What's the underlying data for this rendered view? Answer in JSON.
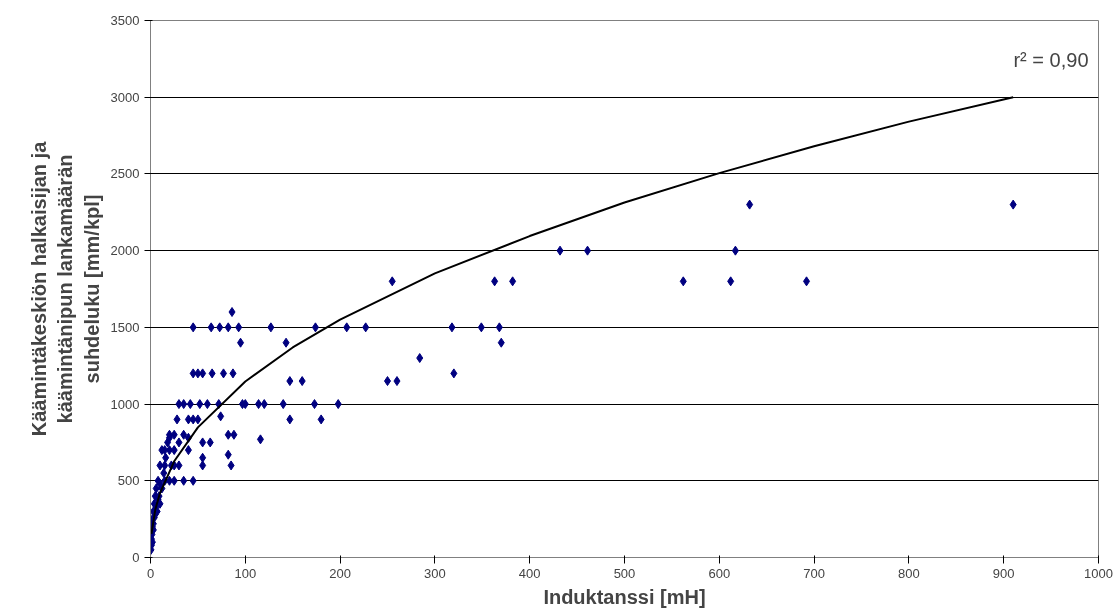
{
  "chart_data": {
    "type": "scatter",
    "xlabel": "Induktanssi [mH]",
    "ylabel": "Käämintäkeskiön halkaisijan ja käämintänipun lankamäärän suhdeluku [mm/kpl]",
    "xlim": [
      0,
      1000
    ],
    "xticks": [
      0,
      100,
      200,
      300,
      400,
      500,
      600,
      700,
      800,
      900,
      1000
    ],
    "ylim": [
      0,
      3500
    ],
    "yticks": [
      0,
      500,
      1000,
      1500,
      2000,
      2500,
      3000,
      3500
    ],
    "grid": "y",
    "annotations": [
      "r² = 0,90"
    ],
    "series": [
      {
        "color": "#000080",
        "marker": "diamond",
        "x": [
          910,
          632,
          617,
          612,
          562,
          692,
          432,
          461,
          382,
          363,
          370,
          368,
          349,
          318,
          320,
          284,
          260,
          250,
          255,
          227,
          207,
          198,
          180,
          174,
          173,
          160,
          147,
          147,
          143,
          140,
          127,
          120,
          114,
          116,
          100,
          97,
          95,
          93,
          87,
          86,
          82,
          88,
          82,
          85,
          82,
          73,
          74,
          77,
          72,
          64,
          63,
          65,
          60,
          55,
          52,
          50,
          45,
          45,
          42,
          40,
          45,
          55,
          55,
          55,
          50,
          45,
          40,
          35,
          30,
          28,
          25,
          20,
          35,
          30,
          35,
          25,
          20,
          15,
          0.5,
          1,
          1,
          1.5,
          2,
          2,
          3,
          3,
          4,
          5,
          5,
          6,
          7,
          8,
          9,
          10,
          10,
          12,
          12,
          15,
          15,
          18,
          20,
          22,
          25,
          30,
          40,
          2,
          3,
          4,
          6,
          8,
          10,
          14,
          16,
          20,
          25
        ],
        "values": [
          2300,
          2300,
          2000,
          1800,
          1800,
          1800,
          2000,
          2000,
          1800,
          1800,
          1400,
          1500,
          1500,
          1500,
          1200,
          1300,
          1150,
          1150,
          1800,
          1500,
          1500,
          1000,
          900,
          1500,
          1000,
          1150,
          1150,
          900,
          1400,
          1000,
          1500,
          1000,
          1000,
          770,
          1000,
          1000,
          1400,
          1500,
          1200,
          1600,
          1500,
          800,
          800,
          600,
          670,
          1500,
          920,
          1200,
          1000,
          1500,
          750,
          1200,
          1000,
          1200,
          1000,
          1200,
          1500,
          1200,
          1000,
          780,
          500,
          600,
          650,
          750,
          900,
          900,
          900,
          1000,
          1000,
          900,
          800,
          800,
          800,
          600,
          500,
          500,
          500,
          500,
          50,
          80,
          120,
          150,
          200,
          250,
          180,
          300,
          350,
          280,
          400,
          450,
          300,
          500,
          400,
          600,
          350,
          450,
          700,
          600,
          700,
          750,
          700,
          600,
          700,
          750,
          700,
          100,
          220,
          260,
          330,
          380,
          480,
          550,
          650,
          780,
          600
        ]
      },
      {
        "type": "line",
        "color": "#000000",
        "x": [
          1,
          5,
          10,
          25,
          50,
          100,
          150,
          200,
          300,
          400,
          500,
          600,
          700,
          800,
          910
        ],
        "values": [
          154,
          311,
          420,
          627,
          848,
          1147,
          1369,
          1550,
          1852,
          2095,
          2314,
          2505,
          2680,
          2841,
          3000
        ]
      }
    ]
  }
}
